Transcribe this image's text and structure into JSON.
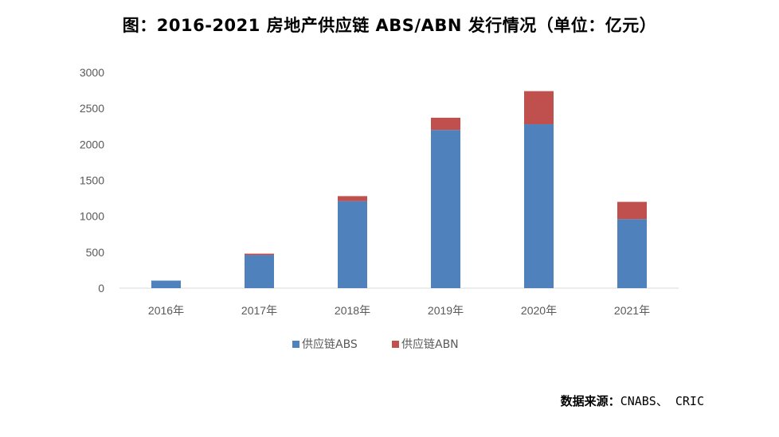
{
  "chart_data": {
    "type": "bar",
    "stacked": true,
    "title": "图：2016-2021 房地产供应链 ABS/ABN 发行情况（单位：亿元）",
    "categories": [
      "2016年",
      "2017年",
      "2018年",
      "2019年",
      "2020年",
      "2021年"
    ],
    "series": [
      {
        "name": "供应链ABS",
        "color": "#4F81BD",
        "values": [
          105,
          460,
          1210,
          2200,
          2280,
          960
        ]
      },
      {
        "name": "供应链ABN",
        "color": "#C0504D",
        "values": [
          0,
          20,
          70,
          170,
          460,
          240
        ]
      }
    ],
    "ylim": [
      0,
      3000
    ],
    "yticks": [
      0,
      500,
      1000,
      1500,
      2000,
      2500,
      3000
    ],
    "xlabel": "",
    "ylabel": "",
    "grid": false,
    "legend": "bottom"
  },
  "source": {
    "prefix": "数据来源：",
    "text": "CNABS、 CRIC"
  }
}
